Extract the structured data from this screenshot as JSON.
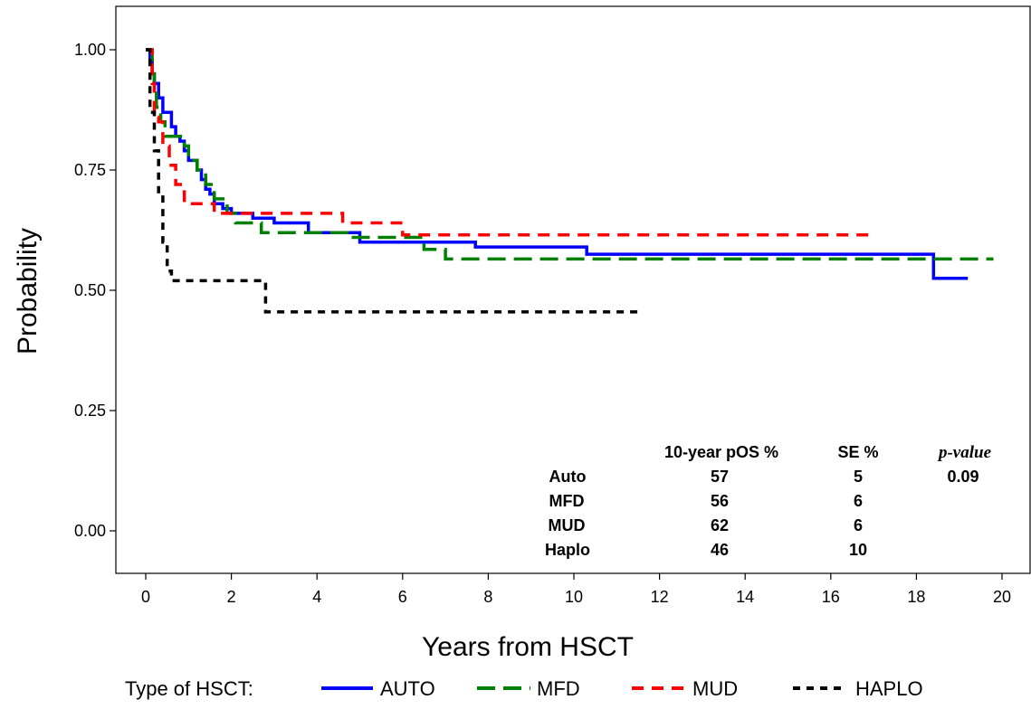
{
  "chart_data": {
    "type": "line",
    "step": true,
    "xlabel": "Years from HSCT",
    "ylabel": "Probability",
    "xlim": [
      0,
      20
    ],
    "ylim": [
      0,
      1
    ],
    "xticks": [
      "0",
      "2",
      "4",
      "6",
      "8",
      "10",
      "12",
      "14",
      "16",
      "18",
      "20"
    ],
    "yticks": [
      "0.00",
      "0.25",
      "0.50",
      "0.75",
      "1.00"
    ],
    "grid": false,
    "legend_title": "Type of HSCT:",
    "legend_position": "bottom",
    "series": [
      {
        "name": "AUTO",
        "color": "#0000ff",
        "dash": "solid",
        "x": [
          0,
          0.1,
          0.15,
          0.2,
          0.3,
          0.4,
          0.5,
          0.6,
          0.7,
          0.8,
          0.9,
          1.0,
          1.1,
          1.2,
          1.3,
          1.4,
          1.5,
          1.6,
          1.8,
          2.0,
          2.5,
          3.0,
          3.8,
          5.0,
          7.7,
          10.3,
          18.4,
          19.2
        ],
        "y": [
          1.0,
          0.98,
          0.95,
          0.93,
          0.9,
          0.87,
          0.87,
          0.84,
          0.82,
          0.81,
          0.79,
          0.77,
          0.77,
          0.75,
          0.73,
          0.71,
          0.7,
          0.68,
          0.67,
          0.66,
          0.65,
          0.64,
          0.62,
          0.6,
          0.59,
          0.575,
          0.525,
          0.525
        ]
      },
      {
        "name": "MFD",
        "color": "#008000",
        "dash": "long-dash",
        "x": [
          0,
          0.15,
          0.2,
          0.25,
          0.35,
          0.45,
          0.6,
          0.9,
          1.0,
          1.2,
          1.4,
          1.6,
          1.9,
          2.1,
          2.7,
          4.7,
          6.5,
          7.0,
          19.8
        ],
        "y": [
          1.0,
          0.95,
          0.92,
          0.88,
          0.85,
          0.82,
          0.82,
          0.8,
          0.77,
          0.75,
          0.72,
          0.69,
          0.66,
          0.64,
          0.62,
          0.61,
          0.585,
          0.565,
          0.565
        ]
      },
      {
        "name": "MUD",
        "color": "#ff0000",
        "dash": "dash",
        "x": [
          0,
          0.15,
          0.2,
          0.3,
          0.4,
          0.55,
          0.7,
          0.9,
          1.6,
          4.6,
          6.0,
          17.0
        ],
        "y": [
          1.0,
          0.93,
          0.86,
          0.85,
          0.8,
          0.76,
          0.72,
          0.68,
          0.66,
          0.64,
          0.615,
          0.615
        ]
      },
      {
        "name": "HAPLO",
        "color": "#000000",
        "dash": "short-dash",
        "x": [
          0,
          0.1,
          0.2,
          0.3,
          0.4,
          0.5,
          0.6,
          2.8,
          11.5
        ],
        "y": [
          1.0,
          0.87,
          0.79,
          0.7,
          0.6,
          0.54,
          0.52,
          0.455,
          0.455
        ]
      }
    ],
    "annotation_table": {
      "headers": [
        "",
        "10-year pOS %",
        "SE %",
        "p-value"
      ],
      "rows": [
        [
          "Auto",
          "57",
          "5",
          "0.09"
        ],
        [
          "MFD",
          "56",
          "6",
          ""
        ],
        [
          "MUD",
          "62",
          "6",
          ""
        ],
        [
          "Haplo",
          "46",
          "10",
          ""
        ]
      ]
    }
  }
}
